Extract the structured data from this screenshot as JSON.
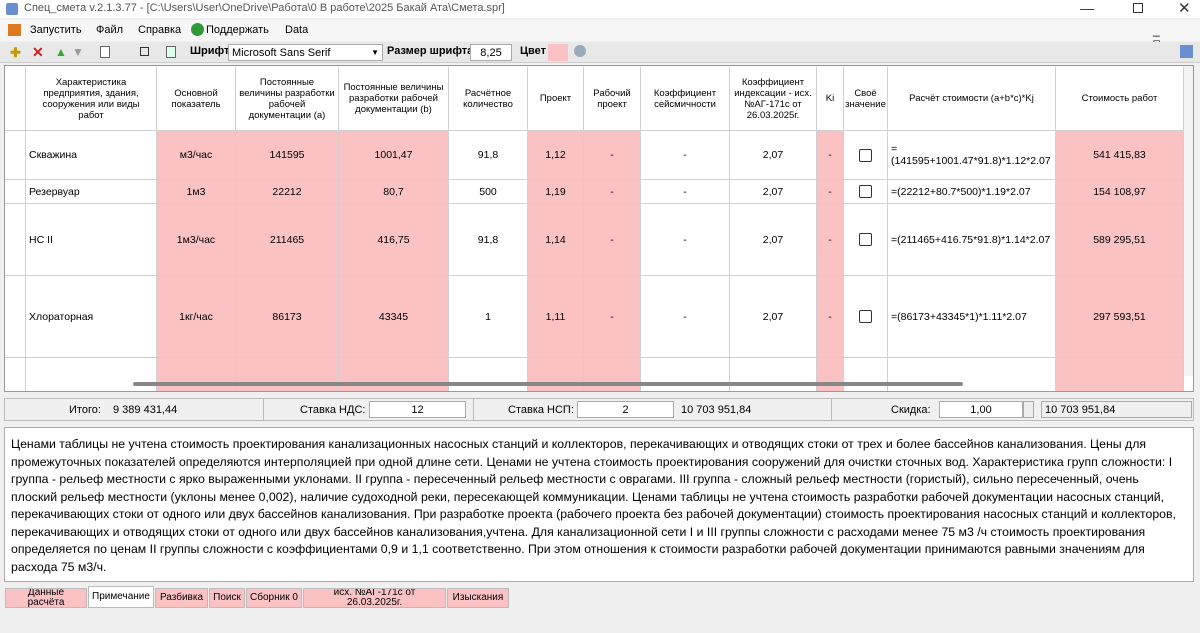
{
  "window": {
    "title": "Спец_смета v.2.1.3.77 - [C:\\Users\\User\\OneDrive\\Работа\\0 В работе\\2025 Бакай Ата\\Смета.spr]"
  },
  "menu": [
    "Запустить",
    "Файл",
    "Справка",
    "Поддержать",
    "Data"
  ],
  "toolbar": {
    "font_label": "Шрифт",
    "font": "Microsoft Sans Serif",
    "size_label": "Размер шрифта",
    "size": "8,25",
    "color_label": "Цвет"
  },
  "table": {
    "headers": [
      "Характеристика предприятия, здания, сооружения или виды работ",
      "Основной показатель",
      "Постоянные величины разработки рабочей документации (a)",
      "Постоянные величины разработки рабочей документации (b)",
      "Расчётное количество",
      "Проект",
      "Рабочий проект",
      "Коэффициент сейсмичности",
      "Коэффициент индексации - исх. №АГ-171с от 26.03.2025г.",
      "Ki",
      "Своё значение",
      "Расчёт стоимости (a+b*c)*Kj",
      "Стоимость работ"
    ],
    "rows": [
      [
        "Скважина",
        "м3/час",
        "141595",
        "1001,47",
        "91,8",
        "1,12",
        "-",
        "-",
        "2,07",
        "-",
        false,
        "=(141595+1001.47*91.8)*1.12*2.07",
        "541 415,83"
      ],
      [
        "Резервуар",
        "1м3",
        "22212",
        "80,7",
        "500",
        "1,19",
        "-",
        "-",
        "2,07",
        "-",
        false,
        "=(22212+80.7*500)*1.19*2.07",
        "154 108,97"
      ],
      [
        "НС II",
        "1м3/час",
        "211465",
        "416,75",
        "91,8",
        "1,14",
        "-",
        "-",
        "2,07",
        "-",
        false,
        "=(211465+416.75*91.8)*1.14*2.07",
        "589 295,51"
      ],
      [
        "Хлораторная",
        "1кг/час",
        "86173",
        "43345",
        "1",
        "1,11",
        "-",
        "-",
        "2,07",
        "-",
        false,
        "=(86173+43345*1)*1.11*2.07",
        "297 593,51"
      ]
    ]
  },
  "summary": {
    "total_label": "Итого:",
    "total": "9 389 431,44",
    "vat_label": "Ставка НДС:",
    "vat": "12",
    "nsp_label": "Ставка НСП:",
    "nsp": "2",
    "grand_total": "10 703 951,84",
    "discount_label": "Скидка:",
    "discount": "1,00",
    "discounted_total": "10 703 951,84"
  },
  "note": "Ценами таблицы не учтена стоимость проектирования канализационных насосных станций и коллекторов, перекачивающих и отводящих стоки от трех и более бассейнов канализования. Цены для промежуточных показателей определяются интерполяцией при одной длине сети. Ценами не учтена стоимость проектирования сооружений для очистки сточных вод. Характеристика групп сложности: I группа - рельеф местности с ярко выраженными уклонами. II группа - пересеченный рельеф местности с оврагами. III группа - сложный рельеф местности (гористый), сильно пересеченный, очень плоский рельеф местности (уклоны менее 0,002), наличие судоходной реки, пересекающей коммуникации. Ценами таблицы не учтена стоимость разработки рабочей документации насосных станций, перекачивающих стоки от одного или двух бассейнов канализования. При разработке проекта (рабочего проекта без рабочей документации) стоимость проектирования насосных станций и коллекторов, перекачивающих и отводящих стоки от одного или двух бассейнов канализования,учтена. Для канализационной сети I и III группы сложности с расходами менее 75 м3 /ч стоимость проектирования определяется по ценам II группы сложности с коэффициентами 0,9 и 1,1 соответственно. При этом отношения к стоимости разработки рабочей документации принимаются равными значениям для расхода 75 м3/ч.",
  "tabs": [
    "Данные расчёта",
    "Примечание",
    "Разбивка",
    "Поиск",
    "Сборник 0",
    "исх. №АГ-171с от 26.03.2025г.",
    "Изыскания"
  ]
}
